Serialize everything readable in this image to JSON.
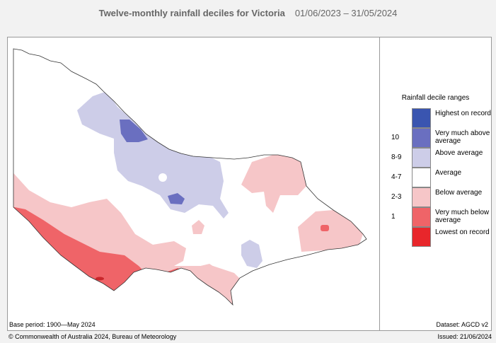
{
  "title": "Twelve-monthly rainfall deciles for Victoria",
  "period": "01/06/2023 – 31/05/2024",
  "legend": {
    "title": "Rainfall decile ranges",
    "items": [
      {
        "code": "",
        "label": "Highest on record",
        "color": "#3a55b0"
      },
      {
        "code": "10",
        "label": "Very much above average",
        "color": "#6a6fc0"
      },
      {
        "code": "8-9",
        "label": "Above average",
        "color": "#cdcde8"
      },
      {
        "code": "4-7",
        "label": "Average",
        "color": "#ffffff"
      },
      {
        "code": "2-3",
        "label": "Below average",
        "color": "#f6c6c8"
      },
      {
        "code": "1",
        "label": "Very much below average",
        "color": "#ef6468"
      },
      {
        "code": "",
        "label": "Lowest on record",
        "color": "#e8262b"
      }
    ]
  },
  "base_period": "Base period: 1900—May 2024",
  "dataset": "Dataset: AGCD v2",
  "copyright": "© Commonwealth of Australia 2024, Bureau of Meteorology",
  "issued": "Issued: 21/06/2024"
}
